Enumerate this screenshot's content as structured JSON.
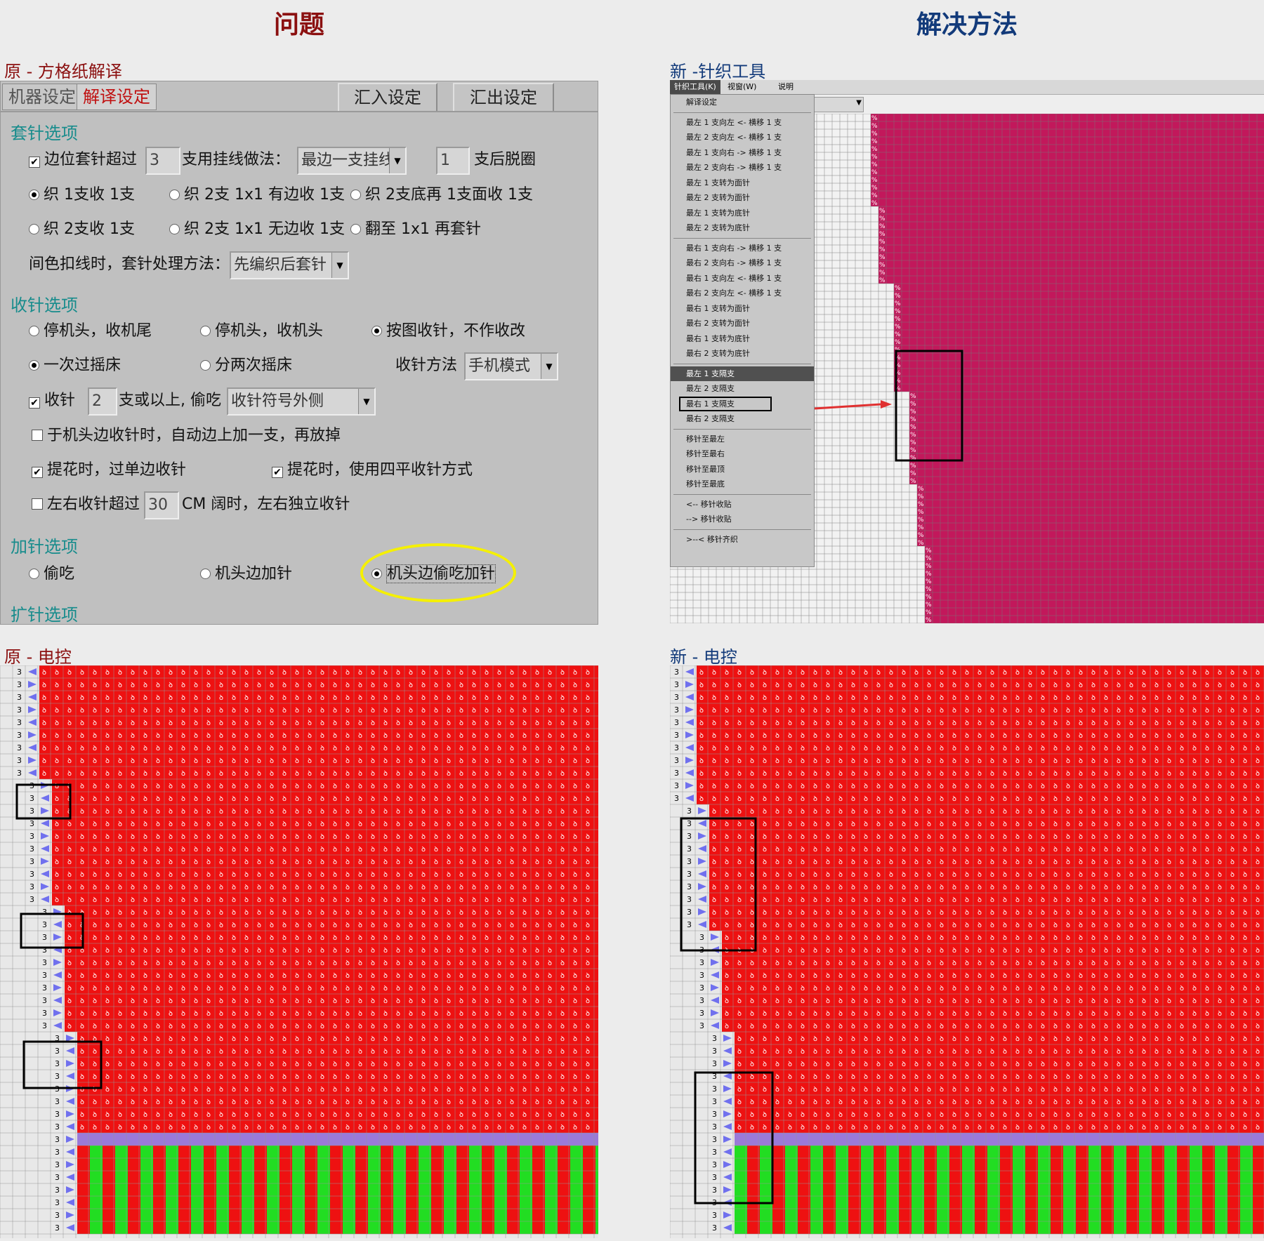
{
  "headings": {
    "problem": "问题",
    "solution": "解决方法"
  },
  "sections": {
    "orig_square": "原 - 方格纸解译",
    "new_tool": "新 -针织工具",
    "orig_control": "原 - 电控",
    "new_control": "新 - 电控"
  },
  "dialog": {
    "tabs": [
      "机器设定",
      "解译设定"
    ],
    "buttons": [
      "汇入设定",
      "汇出设定"
    ],
    "group_cast": "套针选项",
    "cast_row1": {
      "label": "边位套针超过",
      "value": "3",
      "mid": "支用挂线做法：",
      "select": "最边一支挂线",
      "value2": "1",
      "end": "支后脱圈"
    },
    "cast_radios": [
      "织 1支收 1支",
      "织 2支 1x1 有边收 1支",
      "织 2支底再 1支面收 1支",
      "织 2支收 1支",
      "织 2支 1x1 无边收 1支",
      "翻至 1x1 再套针"
    ],
    "cast_color": {
      "label": "间色扣线时，套针处理方法：",
      "select": "先编织后套针"
    },
    "group_dec": "收针选项",
    "dec_radios": [
      "停机头，收机尾",
      "停机头，收机头",
      "按图收针，不作收改",
      "一次过摇床",
      "分两次摇床"
    ],
    "dec_method": {
      "label": "收针方法",
      "select": "手机模式"
    },
    "dec_row": {
      "label": "收针",
      "value": "2",
      "mid": "支或以上, 偷吃",
      "select": "收针符号外侧"
    },
    "dec_checks": [
      "于机头边收针时，自动边上加一支，再放掉",
      "提花时，过单边收针",
      "提花时，使用四平收针方式"
    ],
    "dec_split": {
      "label": "左右收针超过",
      "value": "30",
      "end": "CM 阔时，左右独立收针"
    },
    "group_inc": "加针选项",
    "inc_radios": [
      "偷吃",
      "机头边加针",
      "机头边偷吃加针"
    ],
    "group_expand": "扩针选项"
  },
  "toolmenu": {
    "menubar": [
      "针织工具(K)",
      "视窗(W)",
      "说明"
    ],
    "items": [
      "解译设定",
      "最左 1 支向左 <- 横移 1 支",
      "最左 2 支向左 <- 横移 1 支",
      "最左 1 支向右 -> 横移 1 支",
      "最左 2 支向右 -> 横移 1 支",
      "最左 1 支转为面针",
      "最左 2 支转为面针",
      "最左 1 支转为底针",
      "最左 2 支转为底针",
      "最右 1 支向右 -> 横移 1 支",
      "最右 2 支向右 -> 横移 1 支",
      "最右 1 支向左 <- 横移 1 支",
      "最右 2 支向左 <- 横移 1 支",
      "最右 1 支转为面针",
      "最右 2 支转为面针",
      "最右 1 支转为底针",
      "最右 2 支转为底针",
      "最左 1 支隔支",
      "最左 2 支隔支",
      "最右 1 支隔支",
      "最右 2 支隔支",
      "移针至最左",
      "移针至最右",
      "移针至最顶",
      "移针至最底",
      "<-- 移针收贴",
      "--> 移针收贴",
      ">--< 移针齐织"
    ]
  },
  "grid_number": "3",
  "colors": {
    "magenta": "#c2185b",
    "red": "#ee1111",
    "green": "#22dd22",
    "blue_arrow": "#7070ee",
    "highlight_yellow": "#f5f000"
  }
}
